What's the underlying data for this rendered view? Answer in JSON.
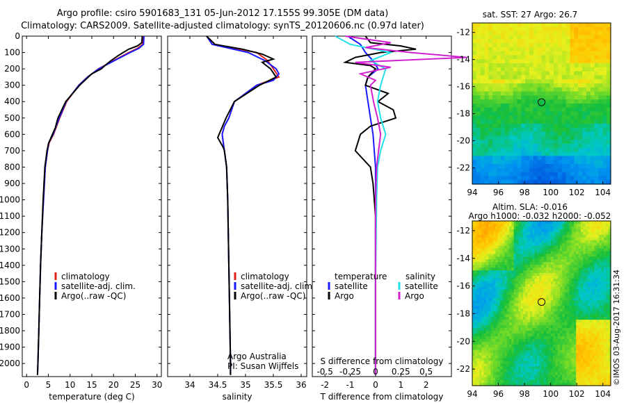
{
  "header": {
    "line1": "Argo profile: csiro 5901683_131 05-Jun-2012 17.155S 99.305E (DM data)",
    "line2": "Climatology: CARS2009. Satellite-adjusted climatology: synTS_20120606.nc (0.97d later)"
  },
  "stamp": "©IMOS 03-Aug-2017 16:31:34",
  "colors": {
    "climatology": "#e0201c",
    "satellite": "#1a1aff",
    "argo": "#000000",
    "sal_satellite": "#22e0e8",
    "sal_argo": "#d020d0"
  },
  "chart_data": [
    {
      "type": "line",
      "id": "temperature",
      "xlabel": "temperature (deg C)",
      "ylabel": "",
      "xlim": [
        -1,
        31
      ],
      "ylim": [
        2080,
        0
      ],
      "xticks": [
        "0",
        "5",
        "10",
        "15",
        "20",
        "25",
        "30"
      ],
      "yticks": [
        "0",
        "100",
        "200",
        "300",
        "400",
        "500",
        "600",
        "700",
        "800",
        "900",
        "1000",
        "1100",
        "1200",
        "1300",
        "1400",
        "1500",
        "1600",
        "1700",
        "1800",
        "1900",
        "2000"
      ],
      "legend": [
        "climatology",
        "satellite-adj. clim.",
        "Argo(..raw -QC)"
      ],
      "series": [
        {
          "name": "climatology",
          "color": "climatology",
          "depth": [
            0,
            50,
            75,
            100,
            150,
            200,
            250,
            300,
            400,
            500,
            600,
            650,
            700,
            800,
            1000,
            1200,
            1400,
            1600,
            1800,
            2000,
            2070
          ],
          "values": [
            26.9,
            26.7,
            25.5,
            23.5,
            20,
            16.5,
            14,
            12,
            9.2,
            7.6,
            6.2,
            5.2,
            4.8,
            4.3,
            3.9,
            3.5,
            3.2,
            3.0,
            2.8,
            2.6,
            2.5
          ]
        },
        {
          "name": "satellite-adj. clim.",
          "color": "satellite",
          "depth": [
            0,
            50,
            75,
            100,
            150,
            200,
            250,
            300,
            400,
            500,
            600,
            650,
            700,
            800,
            1000,
            1200,
            1400,
            1600,
            1800,
            2000,
            2070
          ],
          "values": [
            27.0,
            26.9,
            25.8,
            23.8,
            20.2,
            16.6,
            14,
            12,
            9.1,
            7.5,
            6.1,
            5.1,
            4.8,
            4.3,
            3.9,
            3.5,
            3.2,
            3.0,
            2.8,
            2.6,
            2.5
          ]
        },
        {
          "name": "Argo(..raw -QC)",
          "color": "argo",
          "depth": [
            0,
            40,
            60,
            80,
            100,
            120,
            150,
            180,
            200,
            230,
            260,
            300,
            400,
            500,
            560,
            620,
            660,
            700,
            800,
            1000,
            1200,
            1400,
            1600,
            1800,
            2000,
            2070
          ],
          "values": [
            26.6,
            26.5,
            25.5,
            23.5,
            22.2,
            21,
            19.4,
            18,
            17.2,
            15,
            13.8,
            12.2,
            9,
            7.2,
            6.6,
            5.6,
            5.0,
            4.7,
            4.2,
            3.8,
            3.5,
            3.2,
            3.0,
            2.8,
            2.6,
            2.5
          ]
        }
      ]
    },
    {
      "type": "line",
      "id": "salinity",
      "xlabel": "salinity",
      "xlim": [
        33.6,
        36.1
      ],
      "ylim": [
        2080,
        0
      ],
      "xticks": [
        "34",
        "34.5",
        "35",
        "35.5",
        "36"
      ],
      "legend": [
        "climatology",
        "satellite-adj. clim.",
        "Argo(..raw -QC)"
      ],
      "annotation": [
        "Argo Australia",
        "PI: Susan Wijffels"
      ],
      "series": [
        {
          "name": "climatology",
          "color": "climatology",
          "depth": [
            0,
            50,
            100,
            150,
            200,
            250,
            300,
            400,
            500,
            550,
            600,
            650,
            700,
            800,
            1000,
            1200,
            1400,
            1600,
            1800,
            2000,
            2070
          ],
          "values": [
            34.3,
            34.45,
            35.2,
            35.4,
            35.5,
            35.6,
            35.2,
            34.8,
            34.7,
            34.62,
            34.58,
            34.6,
            34.62,
            34.66,
            34.68,
            34.69,
            34.7,
            34.71,
            34.72,
            34.73,
            34.73
          ]
        },
        {
          "name": "satellite-adj. clim.",
          "color": "satellite",
          "depth": [
            0,
            50,
            100,
            150,
            200,
            230,
            270,
            300,
            400,
            500,
            550,
            600,
            650,
            700,
            800,
            1000,
            1200,
            1400,
            1600,
            1800,
            2000,
            2070
          ],
          "values": [
            34.3,
            34.4,
            35.05,
            35.35,
            35.55,
            35.6,
            35.5,
            35.2,
            34.8,
            34.7,
            34.62,
            34.58,
            34.6,
            34.62,
            34.66,
            34.68,
            34.69,
            34.7,
            34.71,
            34.72,
            34.73,
            34.73
          ]
        },
        {
          "name": "Argo(..raw -QC)",
          "color": "argo",
          "depth": [
            0,
            50,
            80,
            110,
            140,
            160,
            200,
            250,
            300,
            400,
            500,
            580,
            620,
            650,
            680,
            700,
            800,
            1000,
            1200,
            1400,
            1600,
            1800,
            2000,
            2070
          ],
          "values": [
            34.3,
            34.45,
            34.95,
            35.3,
            35.5,
            35.3,
            35.45,
            35.55,
            35.25,
            34.8,
            34.65,
            34.55,
            34.5,
            34.55,
            34.6,
            34.62,
            34.66,
            34.68,
            34.69,
            34.7,
            34.71,
            34.72,
            34.73,
            34.73
          ]
        }
      ]
    },
    {
      "type": "line",
      "id": "difference",
      "xlabel": "T difference from climatology",
      "xlabel2": "S difference from climatology",
      "xlim": [
        -2.5,
        3
      ],
      "ylim": [
        2080,
        0
      ],
      "xticks": [
        "-2",
        "-1",
        "0",
        "1",
        "2"
      ],
      "xticks2": [
        "-0.5",
        "-0.25",
        "0",
        "0.25",
        "0.5"
      ],
      "legend_headers": [
        "temperature",
        "salinity"
      ],
      "legend": [
        "satellite",
        "Argo",
        "satellite",
        "Argo"
      ],
      "series": [
        {
          "name": "temperature satellite",
          "color": "satellite",
          "depth": [
            0,
            50,
            100,
            150,
            200,
            250,
            300,
            400,
            500,
            600,
            700,
            800,
            1000,
            1200,
            1500,
            2000,
            2070
          ],
          "values": [
            -1.1,
            -0.6,
            -0.4,
            -0.1,
            0.1,
            -0.3,
            -0.4,
            -0.3,
            -0.2,
            -0.1,
            -0.05,
            0,
            0,
            0,
            0,
            0,
            0
          ]
        },
        {
          "name": "temperature Argo",
          "color": "argo",
          "depth": [
            0,
            40,
            60,
            80,
            100,
            130,
            160,
            180,
            200,
            250,
            300,
            350,
            400,
            450,
            500,
            550,
            600,
            650,
            700,
            750,
            800,
            900,
            1000,
            1100,
            1200,
            1500,
            2000,
            2070
          ],
          "values": [
            -0.4,
            -0.2,
            1.0,
            1.6,
            0.2,
            -0.8,
            -1.2,
            -0.2,
            0,
            -0.3,
            -0.4,
            0.5,
            0.1,
            0.7,
            0.8,
            -0.2,
            -0.6,
            -0.7,
            -0.8,
            -0.5,
            -0.2,
            -0.1,
            -0.05,
            0,
            0,
            0,
            0,
            0
          ]
        },
        {
          "name": "salinity satellite",
          "color": "sal_satellite",
          "depth": [
            0,
            50,
            100,
            150,
            200,
            300,
            400,
            500,
            600,
            700,
            800,
            1000,
            1500,
            2000,
            2070
          ],
          "values": [
            -0.4,
            -0.25,
            0.15,
            -0.05,
            0.1,
            0.05,
            0.02,
            0.05,
            0.1,
            0.05,
            0.02,
            0.01,
            0,
            0,
            0
          ]
        },
        {
          "name": "salinity Argo",
          "color": "sal_argo",
          "depth": [
            0,
            40,
            70,
            100,
            130,
            160,
            190,
            230,
            270,
            300,
            400,
            500,
            600,
            700,
            800,
            1000,
            1500,
            2000,
            2070
          ],
          "values": [
            -0.3,
            0.15,
            -0.1,
            0.35,
            0.9,
            -0.2,
            0.15,
            -0.15,
            0.0,
            -0.05,
            -0.02,
            0.02,
            0.05,
            0.03,
            0.01,
            0,
            0,
            0,
            0
          ]
        }
      ]
    },
    {
      "type": "heatmap",
      "id": "sst",
      "title": "sat. SST: 27 Argo: 26.7",
      "xlim": [
        94,
        104.6
      ],
      "ylim": [
        -23.2,
        -11.3
      ],
      "xticks": [
        "94",
        "96",
        "98",
        "100",
        "102",
        "104"
      ],
      "yticks": [
        "-12",
        "-14",
        "-16",
        "-18",
        "-20",
        "-22"
      ],
      "marker": {
        "lon": 99.305,
        "lat": -17.155
      }
    },
    {
      "type": "heatmap",
      "id": "sla",
      "title": "Altim. SLA: -0.016",
      "subtitle": "Argo h1000: -0.032 h2000: -0.052",
      "xlim": [
        94,
        104.6
      ],
      "ylim": [
        -23.2,
        -11.3
      ],
      "xticks": [
        "94",
        "96",
        "98",
        "100",
        "102",
        "104"
      ],
      "yticks": [
        "-12",
        "-14",
        "-16",
        "-18",
        "-20",
        "-22"
      ],
      "marker": {
        "lon": 99.305,
        "lat": -17.155
      }
    }
  ]
}
